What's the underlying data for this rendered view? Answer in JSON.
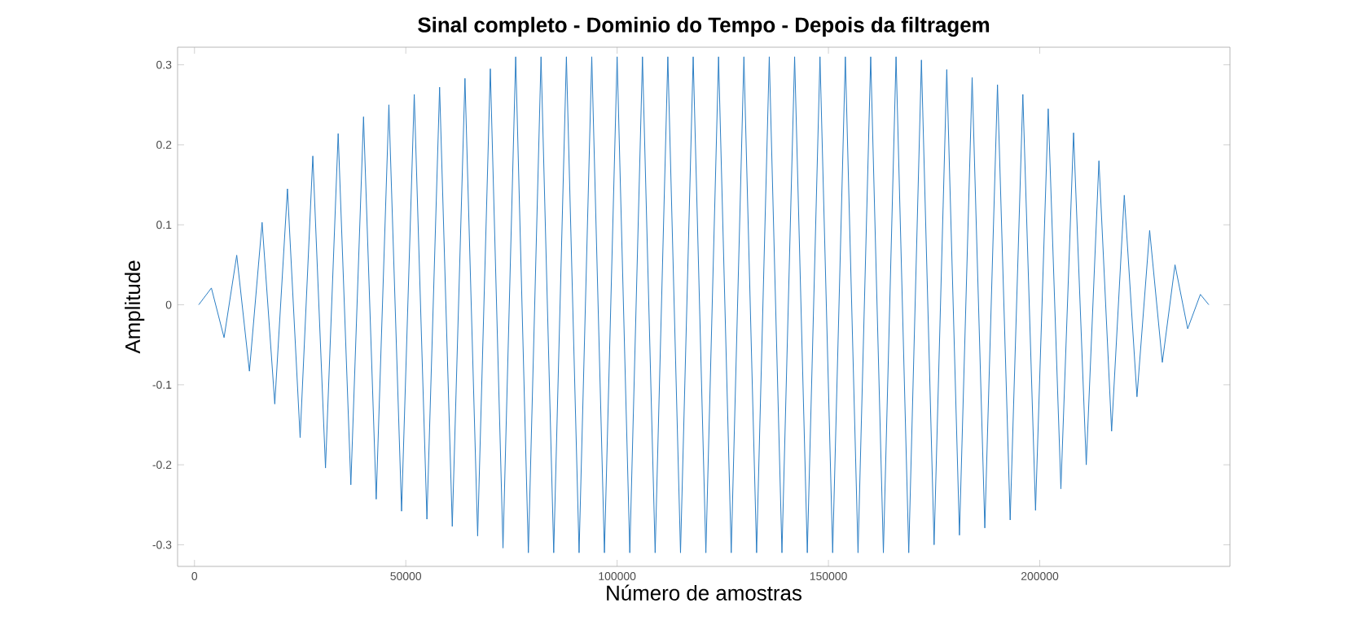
{
  "chart_data": {
    "type": "line",
    "title": "Sinal completo - Dominio do Tempo - Depois da filtragem",
    "xlabel": "Número de amostras",
    "ylabel": "Amplitude",
    "xlim": [
      -4000,
      245000
    ],
    "ylim": [
      -0.327,
      0.322
    ],
    "xticks": [
      0,
      50000,
      100000,
      150000,
      200000
    ],
    "yticks": [
      -0.3,
      -0.2,
      -0.1,
      0,
      0.1,
      0.2,
      0.3
    ],
    "grid": false,
    "marker": "none",
    "line_style": "solid",
    "series": [
      {
        "color": "#2a7dc4",
        "x": [
          1000,
          4000,
          7000,
          10000,
          13000,
          16000,
          19000,
          22000,
          25000,
          28000,
          31000,
          34000,
          37000,
          40000,
          43000,
          46000,
          49000,
          52000,
          55000,
          58000,
          61000,
          64000,
          67000,
          70000,
          73000,
          76000,
          79000,
          82000,
          85000,
          88000,
          91000,
          94000,
          97000,
          100000,
          103000,
          106000,
          109000,
          112000,
          115000,
          118000,
          121000,
          124000,
          127000,
          130000,
          133000,
          136000,
          139000,
          142000,
          145000,
          148000,
          151000,
          154000,
          157000,
          160000,
          163000,
          166000,
          169000,
          172000,
          175000,
          178000,
          181000,
          184000,
          187000,
          190000,
          193000,
          196000,
          199000,
          202000,
          205000,
          208000,
          211000,
          214000,
          217000,
          220000,
          223000,
          226000,
          229000,
          232000,
          235000,
          238000,
          240000
        ],
        "values": [
          0,
          0.021,
          -0.041,
          0.062,
          -0.083,
          0.103,
          -0.124,
          0.145,
          -0.166,
          0.186,
          -0.204,
          0.214,
          -0.225,
          0.235,
          -0.243,
          0.25,
          -0.258,
          0.263,
          -0.268,
          0.272,
          -0.277,
          0.283,
          -0.289,
          0.295,
          -0.304,
          0.31,
          -0.31,
          0.31,
          -0.31,
          0.31,
          -0.31,
          0.31,
          -0.31,
          0.31,
          -0.31,
          0.31,
          -0.31,
          0.31,
          -0.31,
          0.31,
          -0.31,
          0.31,
          -0.31,
          0.31,
          -0.31,
          0.31,
          -0.31,
          0.31,
          -0.31,
          0.31,
          -0.31,
          0.31,
          -0.31,
          0.31,
          -0.31,
          0.31,
          -0.31,
          0.306,
          -0.3,
          0.294,
          -0.288,
          0.284,
          -0.279,
          0.275,
          -0.269,
          0.263,
          -0.257,
          0.245,
          -0.23,
          0.215,
          -0.2,
          0.18,
          -0.158,
          0.137,
          -0.115,
          0.093,
          -0.072,
          0.05,
          -0.03,
          0.013,
          0
        ]
      }
    ]
  }
}
